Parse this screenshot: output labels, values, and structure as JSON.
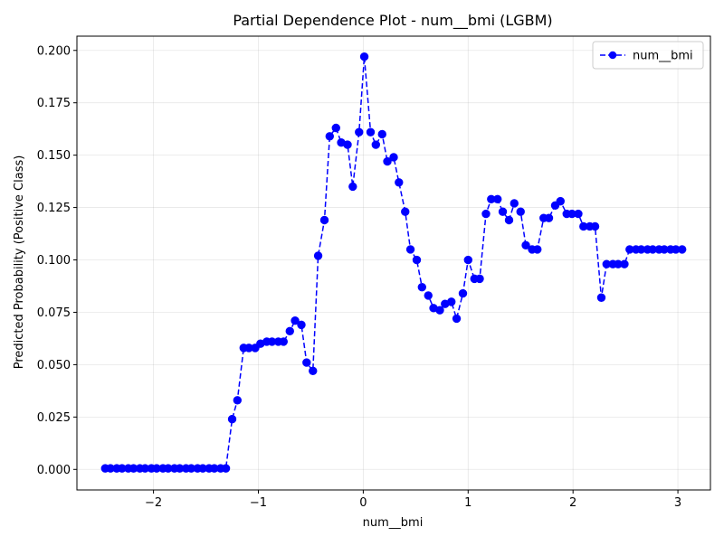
{
  "chart_data": {
    "type": "line",
    "title": "Partial Dependence Plot - num__bmi (LGBM)",
    "xlabel": "num__bmi",
    "ylabel": "Predicted Probability (Positive Class)",
    "xlim": [
      -2.73,
      3.31
    ],
    "ylim": [
      -0.0098,
      0.2068
    ],
    "xticks": [
      -2,
      -1,
      0,
      1,
      2,
      3
    ],
    "xtick_labels": [
      "−2",
      "−1",
      "0",
      "1",
      "2",
      "3"
    ],
    "yticks": [
      0.0,
      0.025,
      0.05,
      0.075,
      0.1,
      0.125,
      0.15,
      0.175,
      0.2
    ],
    "ytick_labels": [
      "0.000",
      "0.025",
      "0.050",
      "0.075",
      "0.100",
      "0.125",
      "0.150",
      "0.175",
      "0.200"
    ],
    "grid": true,
    "legend_position": "top-right",
    "series": [
      {
        "name": "num__bmi",
        "color": "#0000ff",
        "line_style": "dashed",
        "marker": "circle",
        "x": [
          -2.46,
          -2.41,
          -2.35,
          -2.3,
          -2.24,
          -2.19,
          -2.13,
          -2.08,
          -2.02,
          -1.97,
          -1.91,
          -1.86,
          -1.8,
          -1.75,
          -1.69,
          -1.64,
          -1.58,
          -1.53,
          -1.47,
          -1.42,
          -1.36,
          -1.31,
          -1.25,
          -1.2,
          -1.14,
          -1.09,
          -1.03,
          -0.98,
          -0.92,
          -0.87,
          -0.81,
          -0.76,
          -0.7,
          -0.65,
          -0.59,
          -0.54,
          -0.48,
          -0.43,
          -0.37,
          -0.32,
          -0.26,
          -0.21,
          -0.15,
          -0.1,
          -0.04,
          0.01,
          0.07,
          0.12,
          0.18,
          0.23,
          0.29,
          0.34,
          0.4,
          0.45,
          0.51,
          0.56,
          0.62,
          0.67,
          0.73,
          0.78,
          0.84,
          0.89,
          0.95,
          1.0,
          1.06,
          1.11,
          1.17,
          1.22,
          1.28,
          1.33,
          1.39,
          1.44,
          1.5,
          1.55,
          1.61,
          1.66,
          1.72,
          1.77,
          1.83,
          1.88,
          1.94,
          1.99,
          2.05,
          2.1,
          2.16,
          2.21,
          2.27,
          2.32,
          2.38,
          2.43,
          2.49,
          2.54,
          2.6,
          2.65,
          2.71,
          2.76,
          2.82,
          2.87,
          2.93,
          2.98,
          3.04
        ],
        "y": [
          0.0005,
          0.0005,
          0.0005,
          0.0005,
          0.0005,
          0.0005,
          0.0005,
          0.0005,
          0.0005,
          0.0005,
          0.0005,
          0.0005,
          0.0005,
          0.0005,
          0.0005,
          0.0005,
          0.0005,
          0.0005,
          0.0005,
          0.0005,
          0.0005,
          0.0005,
          0.024,
          0.033,
          0.058,
          0.058,
          0.058,
          0.06,
          0.061,
          0.061,
          0.061,
          0.061,
          0.066,
          0.071,
          0.069,
          0.051,
          0.047,
          0.102,
          0.119,
          0.159,
          0.163,
          0.156,
          0.155,
          0.135,
          0.161,
          0.197,
          0.161,
          0.155,
          0.16,
          0.147,
          0.149,
          0.137,
          0.123,
          0.105,
          0.1,
          0.087,
          0.083,
          0.077,
          0.076,
          0.079,
          0.08,
          0.072,
          0.084,
          0.1,
          0.091,
          0.091,
          0.122,
          0.129,
          0.129,
          0.123,
          0.119,
          0.127,
          0.123,
          0.107,
          0.105,
          0.105,
          0.12,
          0.12,
          0.126,
          0.128,
          0.122,
          0.122,
          0.122,
          0.116,
          0.116,
          0.116,
          0.082,
          0.098,
          0.098,
          0.098,
          0.098,
          0.105,
          0.105,
          0.105,
          0.105,
          0.105,
          0.105,
          0.105,
          0.105,
          0.105,
          0.105
        ]
      }
    ]
  }
}
